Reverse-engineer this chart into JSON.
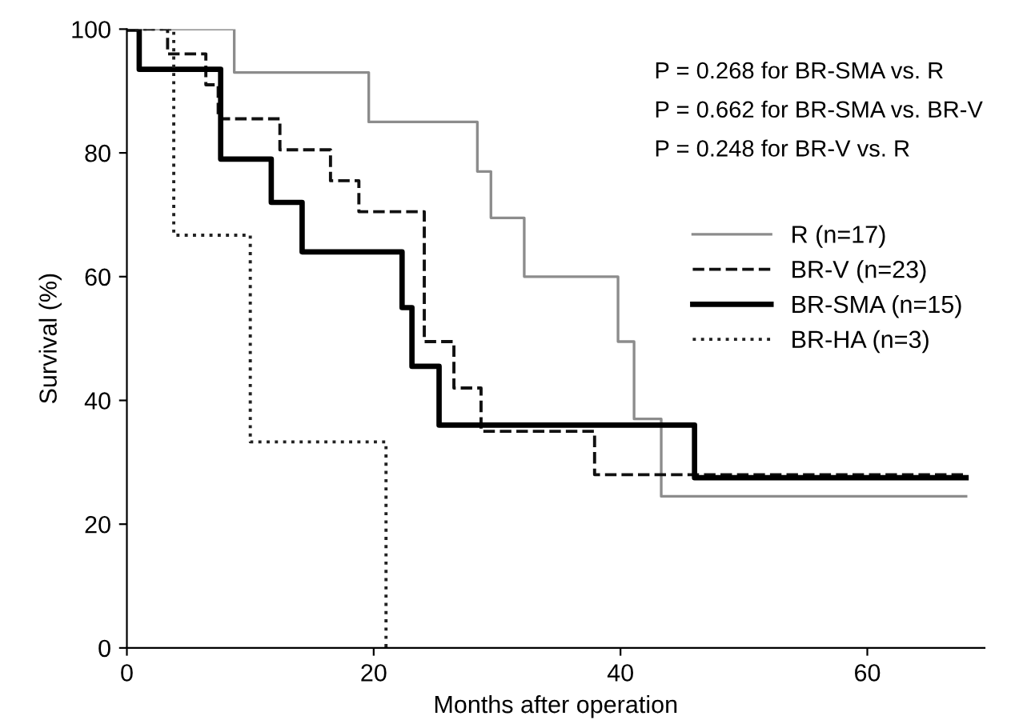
{
  "chart_data": {
    "type": "step",
    "xlabel": "Months after operation",
    "ylabel": "Survival (%)",
    "xlim": [
      0,
      69.5
    ],
    "ylim": [
      0,
      100
    ],
    "xticks": [
      0,
      20,
      40,
      60
    ],
    "yticks": [
      0,
      20,
      40,
      60,
      80,
      100
    ],
    "grid": false,
    "legend": "right",
    "marker": "none",
    "annotations": [
      "P = 0.268 for BR-SMA vs. R",
      "P = 0.662 for BR-SMA vs. BR-V",
      "P = 0.248 for BR-V vs. R"
    ],
    "series": [
      {
        "name": "R (n=17)",
        "color": "#8c8c8c",
        "line_style": "solid",
        "x": [
          0,
          8.7,
          19.6,
          28.4,
          29.5,
          32.2,
          39.8,
          41.1,
          43.3,
          68
        ],
        "values": [
          100,
          93,
          85,
          77,
          69.5,
          60,
          49.5,
          37,
          24.5,
          24.5
        ]
      },
      {
        "name": "BR-V (n=23)",
        "color": "#111111",
        "line_style": "dashed",
        "x": [
          0,
          3.3,
          6.4,
          7.4,
          12.4,
          16.5,
          18.8,
          24.1,
          26.5,
          28.7,
          37.9,
          68
        ],
        "values": [
          100,
          96,
          91,
          85.5,
          80.5,
          75.5,
          70.5,
          49.5,
          42,
          35,
          28,
          28
        ]
      },
      {
        "name": "BR-SMA (n=15)",
        "color": "#000000",
        "line_style": "solid",
        "x": [
          0,
          1.0,
          7.6,
          11.7,
          14.2,
          22.3,
          23.1,
          25.3,
          46,
          68
        ],
        "values": [
          100,
          93.5,
          79,
          72,
          64,
          55,
          45.5,
          36,
          27.5,
          27.5
        ]
      },
      {
        "name": "BR-HA (n=3)",
        "color": "#222222",
        "line_style": "dotted",
        "x": [
          0,
          3.8,
          10,
          21
        ],
        "values": [
          100,
          66.7,
          33.3,
          0
        ]
      }
    ]
  }
}
